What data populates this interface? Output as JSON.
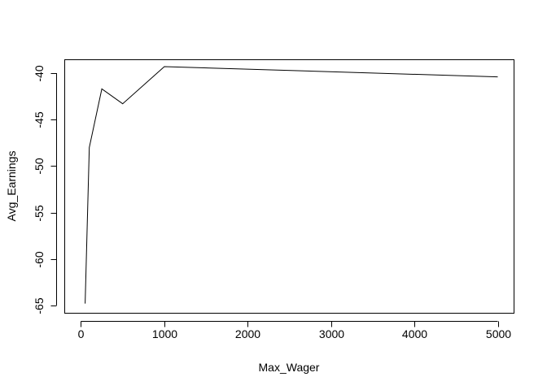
{
  "chart_data": {
    "type": "line",
    "title": "",
    "xlabel": "Max_Wager",
    "ylabel": "Avg_Earnings",
    "x": [
      50,
      100,
      250,
      500,
      1000,
      5000
    ],
    "series": [
      {
        "values": [
          -64.8,
          -48.0,
          -41.7,
          -43.3,
          -39.3,
          -40.4
        ]
      }
    ],
    "xlim": [
      -190,
      5190
    ],
    "ylim": [
      -65.8,
      -38.6
    ],
    "xticks": [
      0,
      1000,
      2000,
      3000,
      4000,
      5000
    ],
    "xtick_labels": [
      "0",
      "1000",
      "2000",
      "3000",
      "4000",
      "5000"
    ],
    "yticks": [
      -65,
      -60,
      -55,
      -50,
      -45,
      -40
    ],
    "ytick_labels": [
      "-65",
      "-60",
      "-55",
      "-50",
      "-45",
      "-40"
    ],
    "grid": false,
    "legend": "none",
    "colors": {
      "line": "#000000",
      "axes": "#000000",
      "background": "#ffffff"
    }
  }
}
